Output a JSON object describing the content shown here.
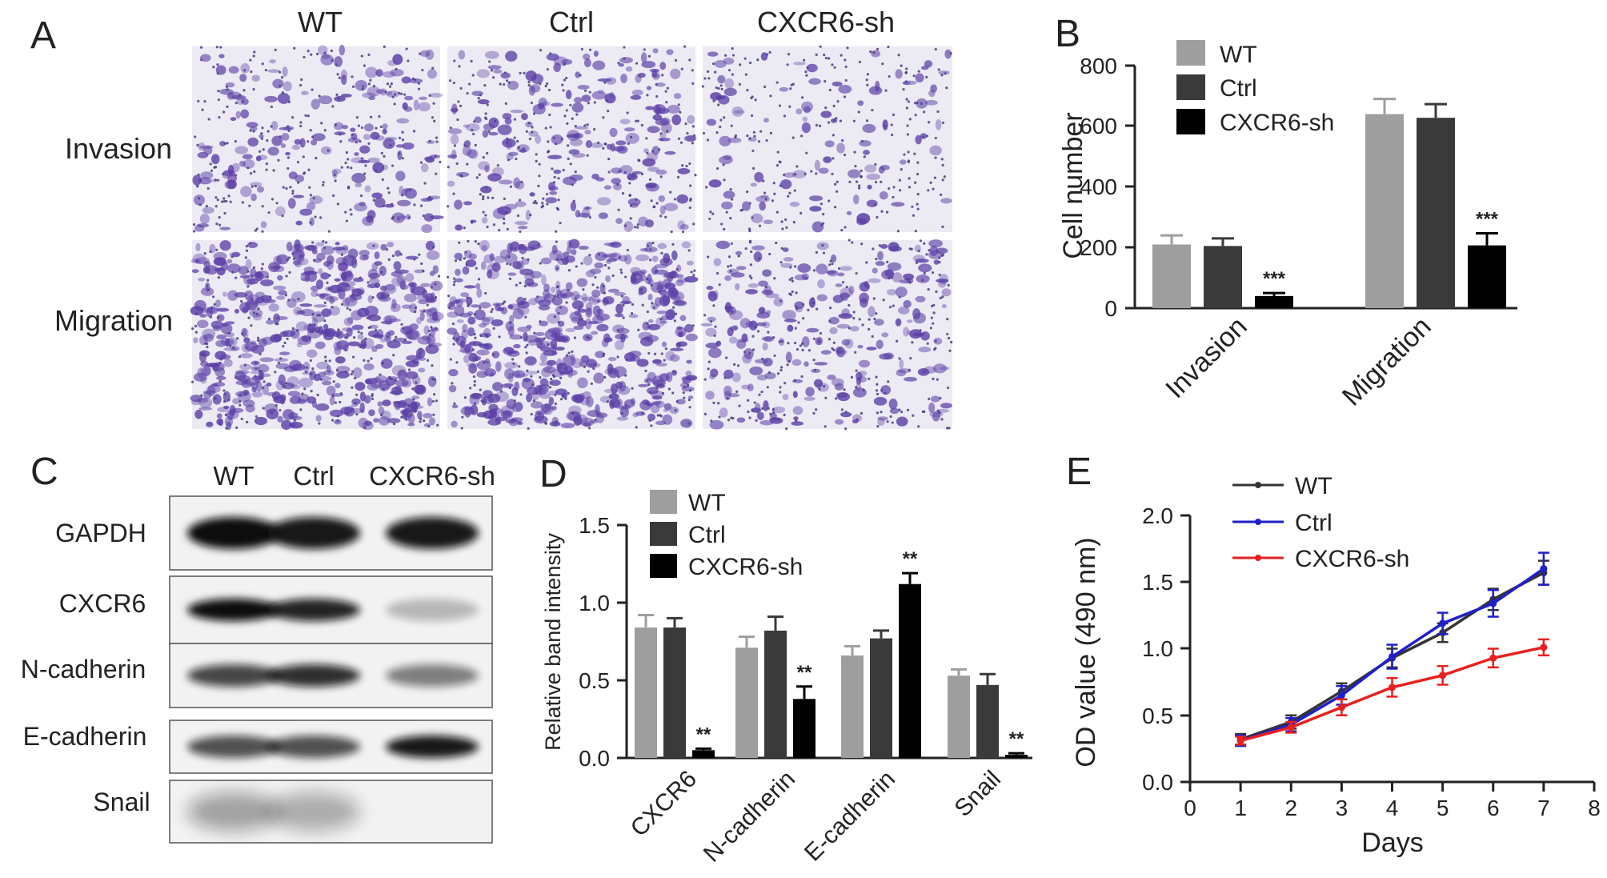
{
  "colors": {
    "wt": "#9e9e9e",
    "ctrl": "#3a3a3a",
    "sh": "#000000",
    "line_wt": "#333333",
    "line_ctrl": "#2020c8",
    "line_sh": "#e82020",
    "stain": "#5b3fa6"
  },
  "panel_a": {
    "letter": "A",
    "columns": [
      "WT",
      "Ctrl",
      "CXCR6-sh"
    ],
    "rows": [
      "Invasion",
      "Migration"
    ]
  },
  "panel_b": {
    "letter": "B",
    "legend": [
      "WT",
      "Ctrl",
      "CXCR6-sh"
    ],
    "ylabel": "Cell number",
    "yticks": [
      "0",
      "200",
      "400",
      "600",
      "800"
    ],
    "categories": [
      "Invasion",
      "Migration"
    ],
    "sig": [
      "***",
      "***"
    ]
  },
  "panel_c": {
    "letter": "C",
    "columns": [
      "WT",
      "Ctrl",
      "CXCR6-sh"
    ],
    "bands": [
      "GAPDH",
      "CXCR6",
      "N-cadherin",
      "E-cadherin",
      "Snail"
    ]
  },
  "panel_d": {
    "letter": "D",
    "legend": [
      "WT",
      "Ctrl",
      "CXCR6-sh"
    ],
    "ylabel": "Relative band intensity",
    "yticks": [
      "0.0",
      "0.5",
      "1.0",
      "1.5"
    ],
    "categories": [
      "CXCR6",
      "N-cadherin",
      "E-cadherin",
      "Snail"
    ],
    "sig": [
      "**",
      "**",
      "**",
      "**"
    ]
  },
  "panel_e": {
    "letter": "E",
    "legend": [
      "WT",
      "Ctrl",
      "CXCR6-sh"
    ],
    "ylabel": "OD value (490 nm)",
    "xlabel": "Days",
    "yticks": [
      "0.0",
      "0.5",
      "1.0",
      "1.5",
      "2.0"
    ],
    "xticks": [
      "0",
      "1",
      "2",
      "3",
      "4",
      "5",
      "6",
      "7",
      "8"
    ]
  },
  "chart_data": [
    {
      "id": "B",
      "type": "bar",
      "categories": [
        "Invasion",
        "Migration"
      ],
      "ylabel": "Cell number",
      "ylim": [
        0,
        800
      ],
      "series": [
        {
          "name": "WT",
          "values": [
            210,
            640
          ],
          "errors": [
            30,
            50
          ]
        },
        {
          "name": "Ctrl",
          "values": [
            205,
            628
          ],
          "errors": [
            25,
            45
          ]
        },
        {
          "name": "CXCR6-sh",
          "values": [
            40,
            207
          ],
          "errors": [
            10,
            40
          ]
        }
      ],
      "legend": "top-left"
    },
    {
      "id": "D",
      "type": "bar",
      "categories": [
        "CXCR6",
        "N-cadherin",
        "E-cadherin",
        "Snail"
      ],
      "ylabel": "Relative band intensity",
      "ylim": [
        0,
        1.5
      ],
      "series": [
        {
          "name": "WT",
          "values": [
            0.84,
            0.71,
            0.66,
            0.53
          ],
          "errors": [
            0.08,
            0.07,
            0.06,
            0.04
          ]
        },
        {
          "name": "Ctrl",
          "values": [
            0.84,
            0.82,
            0.77,
            0.47
          ],
          "errors": [
            0.06,
            0.09,
            0.05,
            0.07
          ]
        },
        {
          "name": "CXCR6-sh",
          "values": [
            0.05,
            0.38,
            1.12,
            0.02
          ],
          "errors": [
            0.01,
            0.08,
            0.07,
            0.01
          ]
        }
      ],
      "legend": "top-left"
    },
    {
      "id": "E",
      "type": "line",
      "x": [
        1,
        2,
        3,
        4,
        5,
        6,
        7
      ],
      "xlabel": "Days",
      "ylabel": "OD value (490 nm)",
      "xlim": [
        0,
        8
      ],
      "ylim": [
        0,
        2.0
      ],
      "series": [
        {
          "name": "WT",
          "values": [
            0.32,
            0.45,
            0.68,
            0.93,
            1.12,
            1.37,
            1.57
          ],
          "errors": [
            0.04,
            0.05,
            0.06,
            0.07,
            0.07,
            0.08,
            0.09
          ]
        },
        {
          "name": "Ctrl",
          "values": [
            0.31,
            0.43,
            0.65,
            0.94,
            1.19,
            1.34,
            1.6
          ],
          "errors": [
            0.04,
            0.05,
            0.07,
            0.09,
            0.08,
            0.1,
            0.12
          ]
        },
        {
          "name": "CXCR6-sh",
          "values": [
            0.31,
            0.41,
            0.56,
            0.71,
            0.8,
            0.93,
            1.01
          ],
          "errors": [
            0.03,
            0.04,
            0.06,
            0.07,
            0.07,
            0.07,
            0.06
          ]
        }
      ],
      "legend": "top-left"
    }
  ]
}
